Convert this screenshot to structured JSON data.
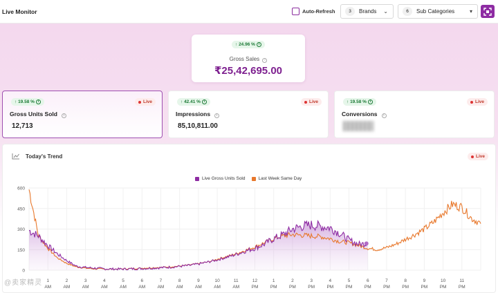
{
  "header": {
    "title": "Live Monitor",
    "auto_refresh_label": "Auto-Refresh",
    "brands": {
      "count": "3",
      "label": "Brands"
    },
    "sub_categories": {
      "count": "6",
      "label": "Sub Categories"
    }
  },
  "gross_sales": {
    "change": "24.96 %",
    "label": "Gross Sales",
    "value": "₹25,42,695.00"
  },
  "kpis": [
    {
      "change": "19.58 %",
      "live": "Live",
      "name": "Gross Units Sold",
      "value": "12,713"
    },
    {
      "change": "42.41 %",
      "live": "Live",
      "name": "Impressions",
      "value": "85,10,811.00"
    },
    {
      "change": "19.58 %",
      "live": "Live",
      "name": "Conversions",
      "value": ""
    }
  ],
  "trend": {
    "title": "Today's Trend",
    "live": "Live"
  },
  "colors": {
    "accent": "#8e2ca3",
    "live_series": "#8e2ca3",
    "last_week_series": "#e8782c"
  },
  "watermark": "@卖家精灵",
  "chart_data": {
    "type": "line",
    "title": "",
    "ylim": [
      0,
      600
    ],
    "yticks": [
      0,
      150,
      300,
      450,
      600
    ],
    "xticks": [
      "1 AM",
      "2 AM",
      "3 AM",
      "4 AM",
      "5 AM",
      "6 AM",
      "7 AM",
      "8 AM",
      "9 AM",
      "10 AM",
      "11 AM",
      "12 PM",
      "1 PM",
      "2 PM",
      "3 PM",
      "4 PM",
      "5 PM",
      "6 PM",
      "7 PM",
      "8 PM",
      "9 PM",
      "10 PM",
      "11 PM"
    ],
    "x_start_hour": 0,
    "x_end_hour": 24,
    "series": [
      {
        "name": "Live Gross Units Sold",
        "hours": [
          0,
          0.5,
          1,
          1.5,
          2,
          2.5,
          3,
          3.5,
          4,
          4.5,
          5,
          5.5,
          6,
          6.5,
          7,
          7.5,
          8,
          8.5,
          9,
          9.5,
          10,
          10.5,
          11,
          11.5,
          12,
          12.5,
          13,
          13.5,
          14,
          14.5,
          15,
          15.5,
          16,
          16.5,
          17,
          17.5,
          18
        ],
        "values": [
          290,
          250,
          180,
          120,
          70,
          30,
          20,
          15,
          10,
          8,
          8,
          10,
          12,
          15,
          18,
          22,
          28,
          35,
          45,
          60,
          75,
          95,
          115,
          140,
          160,
          190,
          230,
          260,
          300,
          320,
          330,
          320,
          310,
          270,
          220,
          190,
          195
        ]
      },
      {
        "name": "Last Week Same Day",
        "hours": [
          0,
          0.5,
          1,
          1.5,
          2,
          2.5,
          3,
          3.5,
          4,
          4.5,
          5,
          5.5,
          6,
          6.5,
          7,
          7.5,
          8,
          8.5,
          9,
          9.5,
          10,
          10.5,
          11,
          11.5,
          12,
          12.5,
          13,
          13.5,
          14,
          14.5,
          15,
          15.5,
          16,
          16.5,
          17,
          17.5,
          18,
          18.5,
          19,
          19.5,
          20,
          20.5,
          21,
          21.5,
          22,
          22.5,
          23,
          23.5,
          24
        ],
        "values": [
          590,
          250,
          160,
          90,
          50,
          25,
          15,
          10,
          8,
          8,
          10,
          12,
          15,
          18,
          20,
          25,
          30,
          38,
          48,
          60,
          80,
          100,
          120,
          145,
          170,
          200,
          230,
          250,
          260,
          255,
          250,
          245,
          230,
          210,
          200,
          180,
          160,
          150,
          165,
          190,
          225,
          260,
          300,
          350,
          420,
          480,
          460,
          380,
          340
        ]
      }
    ]
  }
}
